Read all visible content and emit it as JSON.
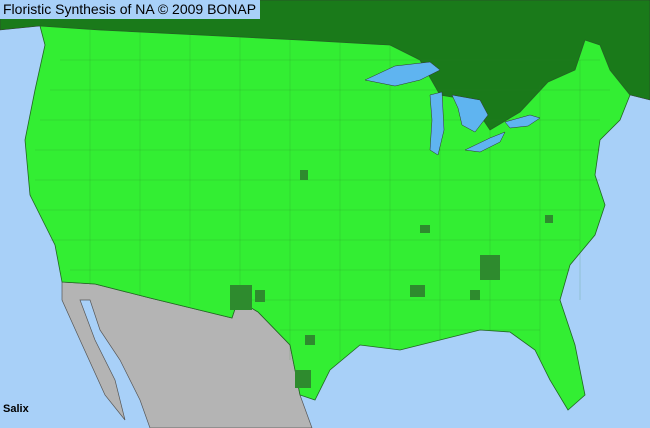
{
  "header": {
    "title": "Floristic Synthesis of NA © 2009 BONAP"
  },
  "map": {
    "taxon_label": "Salix",
    "colors": {
      "ocean": "#a8d0f8",
      "present_county": "#33ee33",
      "dense_county": "#2e8b2e",
      "canada": "#1a7a1a",
      "mexico": "#b4b4b4",
      "lakes": "#5fb4f0",
      "borders": "#555555"
    }
  }
}
